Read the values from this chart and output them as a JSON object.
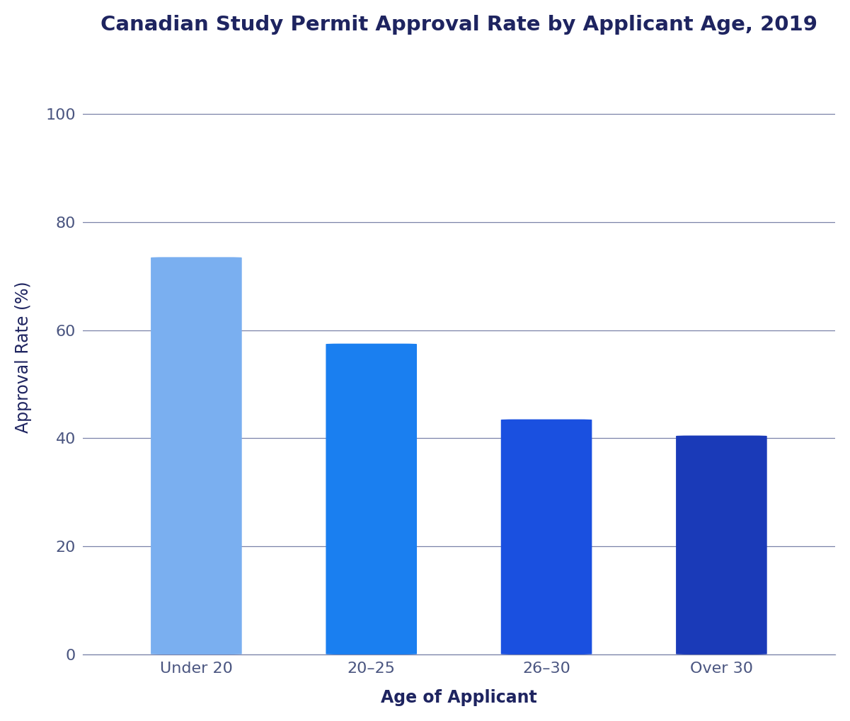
{
  "title": "Canadian Study Permit Approval Rate by Applicant Age, 2019",
  "categories": [
    "Under 20",
    "20–25",
    "26–30",
    "Over 30"
  ],
  "values": [
    73.5,
    57.5,
    43.5,
    40.5
  ],
  "bar_colors": [
    "#7aaff0",
    "#1a7ff0",
    "#1a50e0",
    "#1a3ab8"
  ],
  "ylabel": "Approval Rate (%)",
  "xlabel": "Age of Applicant",
  "ylim": [
    0,
    110
  ],
  "yticks": [
    0,
    20,
    40,
    60,
    80,
    100
  ],
  "background_color": "#ffffff",
  "title_color": "#1e2460",
  "axis_label_color": "#1e2460",
  "tick_label_color": "#4a5580",
  "grid_color": "#7a82a8",
  "title_fontsize": 21,
  "axis_label_fontsize": 17,
  "tick_label_fontsize": 16,
  "bar_width": 0.52,
  "rounding_size": 0.08
}
